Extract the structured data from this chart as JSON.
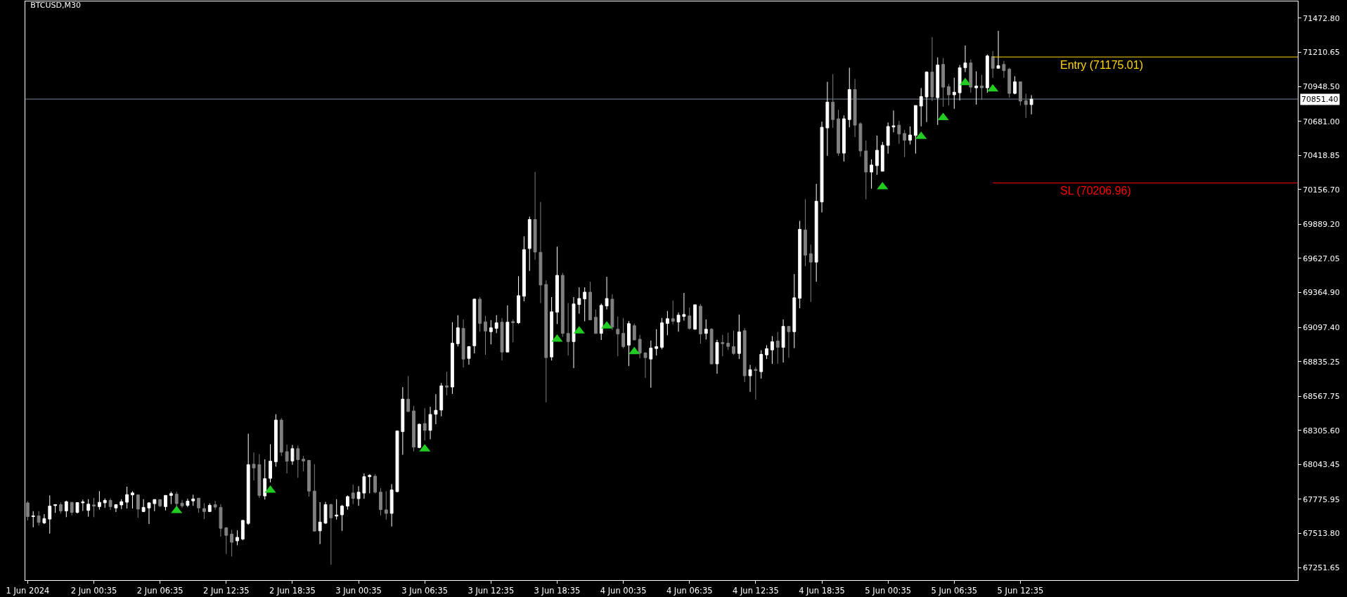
{
  "chart_data": {
    "type": "candlestick",
    "title": "BTCUSD,M30",
    "series": [
      {
        "x": [
          "2024-06-01T18:35",
          "2024-06-01T19:05",
          "2024-06-01T19:35",
          "2024-06-01T20:05",
          "2024-06-01T20:35",
          "2024-06-01T21:05",
          "2024-06-01T21:35",
          "2024-06-01T22:05",
          "2024-06-01T22:35",
          "2024-06-01T23:05",
          "2024-06-01T23:35",
          "2024-06-02T00:05",
          "2024-06-02T00:35",
          "2024-06-02T01:05",
          "2024-06-02T01:35",
          "2024-06-02T02:05",
          "2024-06-02T02:35",
          "2024-06-02T03:05",
          "2024-06-02T03:35",
          "2024-06-02T04:05",
          "2024-06-02T04:35",
          "2024-06-02T05:05",
          "2024-06-02T05:35",
          "2024-06-02T06:05",
          "2024-06-02T06:35",
          "2024-06-02T07:05",
          "2024-06-02T07:35",
          "2024-06-02T08:05",
          "2024-06-02T08:35",
          "2024-06-02T09:05",
          "2024-06-02T09:35",
          "2024-06-02T10:05",
          "2024-06-02T10:35",
          "2024-06-02T11:05",
          "2024-06-02T11:35",
          "2024-06-02T12:05",
          "2024-06-02T12:35",
          "2024-06-02T13:05",
          "2024-06-02T13:35",
          "2024-06-02T14:05",
          "2024-06-02T14:35",
          "2024-06-02T15:05",
          "2024-06-02T15:35",
          "2024-06-02T16:05",
          "2024-06-02T16:35",
          "2024-06-02T17:05",
          "2024-06-02T17:35",
          "2024-06-02T18:05",
          "2024-06-02T18:35",
          "2024-06-02T19:05",
          "2024-06-02T19:35",
          "2024-06-02T20:05",
          "2024-06-02T20:35",
          "2024-06-02T21:05",
          "2024-06-02T21:35",
          "2024-06-02T22:05",
          "2024-06-02T22:35",
          "2024-06-02T23:05",
          "2024-06-02T23:35",
          "2024-06-03T00:05",
          "2024-06-03T00:35",
          "2024-06-03T01:05",
          "2024-06-03T01:35",
          "2024-06-03T02:05",
          "2024-06-03T02:35",
          "2024-06-03T03:05",
          "2024-06-03T03:35",
          "2024-06-03T04:05",
          "2024-06-03T04:35",
          "2024-06-03T05:05",
          "2024-06-03T05:35",
          "2024-06-03T06:05",
          "2024-06-03T06:35",
          "2024-06-03T07:05",
          "2024-06-03T07:35",
          "2024-06-03T08:05",
          "2024-06-03T08:35",
          "2024-06-03T09:05",
          "2024-06-03T09:35",
          "2024-06-03T10:05",
          "2024-06-03T10:35",
          "2024-06-03T11:05",
          "2024-06-03T11:35",
          "2024-06-03T12:05",
          "2024-06-03T12:35",
          "2024-06-03T13:05",
          "2024-06-03T13:35",
          "2024-06-03T14:05",
          "2024-06-03T14:35",
          "2024-06-03T15:05",
          "2024-06-03T15:35",
          "2024-06-03T16:05",
          "2024-06-03T16:35",
          "2024-06-03T17:05",
          "2024-06-03T17:35",
          "2024-06-03T18:05",
          "2024-06-03T18:35",
          "2024-06-03T19:05",
          "2024-06-03T19:35",
          "2024-06-03T20:05",
          "2024-06-03T20:35",
          "2024-06-03T21:05",
          "2024-06-03T21:35",
          "2024-06-03T22:05",
          "2024-06-03T22:35",
          "2024-06-03T23:05",
          "2024-06-03T23:35",
          "2024-06-04T00:05",
          "2024-06-04T00:35",
          "2024-06-04T01:05",
          "2024-06-04T01:35",
          "2024-06-04T02:05",
          "2024-06-04T02:35",
          "2024-06-04T03:05",
          "2024-06-04T03:35",
          "2024-06-04T04:05",
          "2024-06-04T04:35",
          "2024-06-04T05:05",
          "2024-06-04T05:35",
          "2024-06-04T06:05",
          "2024-06-04T06:35",
          "2024-06-04T07:05",
          "2024-06-04T07:35",
          "2024-06-04T08:05",
          "2024-06-04T08:35",
          "2024-06-04T09:05",
          "2024-06-04T09:35",
          "2024-06-04T10:05",
          "2024-06-04T10:35",
          "2024-06-04T11:05",
          "2024-06-04T11:35",
          "2024-06-04T12:05",
          "2024-06-04T12:35",
          "2024-06-04T13:05",
          "2024-06-04T13:35",
          "2024-06-04T14:05",
          "2024-06-04T14:35",
          "2024-06-04T15:05",
          "2024-06-04T15:35",
          "2024-06-04T16:05",
          "2024-06-04T16:35",
          "2024-06-04T17:05",
          "2024-06-04T17:35",
          "2024-06-04T18:05",
          "2024-06-04T18:35",
          "2024-06-04T19:05",
          "2024-06-04T19:35",
          "2024-06-04T20:05",
          "2024-06-04T20:35",
          "2024-06-04T21:05",
          "2024-06-04T21:35",
          "2024-06-04T22:05",
          "2024-06-04T22:35",
          "2024-06-04T23:05",
          "2024-06-04T23:35",
          "2024-06-05T00:05",
          "2024-06-05T00:35",
          "2024-06-05T01:05",
          "2024-06-05T01:35",
          "2024-06-05T02:05",
          "2024-06-05T02:35",
          "2024-06-05T03:05",
          "2024-06-05T03:35",
          "2024-06-05T04:05",
          "2024-06-05T04:35",
          "2024-06-05T05:05",
          "2024-06-05T05:35",
          "2024-06-05T06:05",
          "2024-06-05T06:35",
          "2024-06-05T07:05",
          "2024-06-05T07:35",
          "2024-06-05T08:05",
          "2024-06-05T08:35",
          "2024-06-05T09:05",
          "2024-06-05T09:35",
          "2024-06-05T10:05",
          "2024-06-05T10:35",
          "2024-06-05T11:05",
          "2024-06-05T11:35",
          "2024-06-05T12:05",
          "2024-06-05T12:35",
          "2024-06-05T13:05",
          "2024-06-05T13:35"
        ],
        "ohlc": [
          [
            67749,
            67762,
            67614,
            67643
          ],
          [
            67643,
            67685,
            67561,
            67649
          ],
          [
            67649,
            67685,
            67574,
            67599
          ],
          [
            67595,
            67662,
            67586,
            67628
          ],
          [
            67624,
            67806,
            67513,
            67724
          ],
          [
            67728,
            67739,
            67672,
            67735
          ],
          [
            67735,
            67753,
            67666,
            67687
          ],
          [
            67687,
            67766,
            67639,
            67758
          ],
          [
            67753,
            67754,
            67653,
            67676
          ],
          [
            67676,
            67753,
            67668,
            67751
          ],
          [
            67749,
            67774,
            67687,
            67756
          ],
          [
            67691,
            67777,
            67643,
            67739
          ],
          [
            67733,
            67787,
            67639,
            67724
          ],
          [
            67720,
            67839,
            67697,
            67753
          ],
          [
            67749,
            67783,
            67710,
            67768
          ],
          [
            67768,
            67783,
            67695,
            67720
          ],
          [
            67710,
            67739,
            67678,
            67735
          ],
          [
            67733,
            67777,
            67701,
            67758
          ],
          [
            67754,
            67873,
            67705,
            67812
          ],
          [
            67810,
            67839,
            67705,
            67825
          ],
          [
            67810,
            67812,
            67634,
            67701
          ],
          [
            67682,
            67777,
            67678,
            67714
          ],
          [
            67710,
            67753,
            67586,
            67749
          ],
          [
            67743,
            67777,
            67685,
            67774
          ],
          [
            67774,
            67777,
            67716,
            67726
          ],
          [
            67720,
            67806,
            67691,
            67806
          ],
          [
            67806,
            67835,
            67739,
            67820
          ],
          [
            67816,
            67835,
            67720,
            67743
          ],
          [
            67747,
            67772,
            67710,
            67726
          ],
          [
            67730,
            67781,
            67716,
            67762
          ],
          [
            67764,
            67812,
            67726,
            67779
          ],
          [
            67785,
            67787,
            67672,
            67710
          ],
          [
            67705,
            67745,
            67624,
            67682
          ],
          [
            67682,
            67745,
            67678,
            67730
          ],
          [
            67735,
            67764,
            67697,
            67716
          ],
          [
            67714,
            67739,
            67490,
            67553
          ],
          [
            67557,
            67563,
            67356,
            67499
          ],
          [
            67509,
            67542,
            67336,
            67446
          ],
          [
            67457,
            67538,
            67423,
            67484
          ],
          [
            67471,
            67618,
            67461,
            67614
          ],
          [
            67591,
            68280,
            67580,
            68042
          ],
          [
            68046,
            68136,
            67921,
            68017
          ],
          [
            68042,
            68123,
            67787,
            67806
          ],
          [
            67802,
            68084,
            67774,
            67935
          ],
          [
            67937,
            68199,
            67906,
            68069
          ],
          [
            68065,
            68430,
            68027,
            68385
          ],
          [
            68385,
            68401,
            68109,
            68138
          ],
          [
            68142,
            68196,
            67975,
            68069
          ],
          [
            68071,
            68194,
            68042,
            68165
          ],
          [
            68165,
            68190,
            67941,
            68081
          ],
          [
            68084,
            68109,
            67992,
            68071
          ],
          [
            68075,
            68079,
            67797,
            67839
          ],
          [
            67839,
            68046,
            67528,
            67532
          ],
          [
            67534,
            67754,
            67432,
            67601
          ],
          [
            67593,
            67756,
            67586,
            67735
          ],
          [
            67735,
            67743,
            67273,
            67634
          ],
          [
            67647,
            67777,
            67620,
            67655
          ],
          [
            67657,
            67733,
            67534,
            67724
          ],
          [
            67724,
            67806,
            67697,
            67797
          ],
          [
            67825,
            67889,
            67739,
            67783
          ],
          [
            67781,
            67877,
            67726,
            67831
          ],
          [
            67824,
            67975,
            67781,
            67950
          ],
          [
            67950,
            67969,
            67822,
            67960
          ],
          [
            67954,
            67969,
            67822,
            67831
          ],
          [
            67831,
            67862,
            67653,
            67697
          ],
          [
            67695,
            67839,
            67620,
            67668
          ],
          [
            67668,
            67893,
            67567,
            67848
          ],
          [
            67835,
            68305,
            67831,
            68301
          ],
          [
            68296,
            68638,
            68118,
            68546
          ],
          [
            68546,
            68723,
            68448,
            68451
          ],
          [
            68455,
            68493,
            68145,
            68177
          ],
          [
            68174,
            68358,
            68169,
            68353
          ],
          [
            68358,
            68476,
            68228,
            68306
          ],
          [
            68306,
            68487,
            68237,
            68428
          ],
          [
            68430,
            68584,
            68353,
            68460
          ],
          [
            68462,
            68670,
            68414,
            68648
          ],
          [
            68648,
            68756,
            68575,
            68638
          ],
          [
            68639,
            69137,
            68586,
            68976
          ],
          [
            68972,
            69191,
            68951,
            69094
          ],
          [
            69089,
            69158,
            68790,
            68854
          ],
          [
            68859,
            68954,
            68811,
            68949
          ],
          [
            68956,
            69319,
            68897,
            69314
          ],
          [
            69314,
            69330,
            69064,
            69128
          ],
          [
            69140,
            69185,
            68886,
            69069
          ],
          [
            69064,
            69153,
            68967,
            69094
          ],
          [
            69090,
            69191,
            69053,
            69132
          ],
          [
            69137,
            69169,
            68843,
            68908
          ],
          [
            68908,
            69266,
            68908,
            69137
          ],
          [
            69142,
            69158,
            68983,
            69133
          ],
          [
            69133,
            69491,
            69123,
            69341
          ],
          [
            69337,
            69797,
            69298,
            69695
          ],
          [
            69703,
            69948,
            69531,
            69926
          ],
          [
            69926,
            70291,
            69617,
            69676
          ],
          [
            69674,
            70061,
            69284,
            69423
          ],
          [
            69427,
            69459,
            68521,
            68865
          ],
          [
            68870,
            69330,
            68843,
            69217
          ],
          [
            69214,
            69717,
            69123,
            69497
          ],
          [
            69497,
            69516,
            69024,
            69051
          ],
          [
            69051,
            69284,
            68881,
            68988
          ],
          [
            68988,
            69330,
            68784,
            69277
          ],
          [
            69273,
            69405,
            69203,
            69319
          ],
          [
            69316,
            69405,
            69144,
            69368
          ],
          [
            69368,
            69448,
            69155,
            69155
          ],
          [
            69175,
            69234,
            69047,
            69051
          ],
          [
            69051,
            69280,
            69001,
            69266
          ],
          [
            69262,
            69486,
            69235,
            69319
          ],
          [
            69314,
            69352,
            69078,
            69099
          ],
          [
            69083,
            69180,
            68876,
            69047
          ],
          [
            69051,
            69169,
            68935,
            68949
          ],
          [
            68961,
            69146,
            68800,
            69126
          ],
          [
            69110,
            69126,
            68997,
            69001
          ],
          [
            69006,
            69040,
            68859,
            68899
          ],
          [
            68901,
            68906,
            68709,
            68865
          ],
          [
            68854,
            68996,
            68634,
            68938
          ],
          [
            68935,
            69083,
            68881,
            68949
          ],
          [
            68944,
            69169,
            68929,
            69132
          ],
          [
            69128,
            69223,
            69037,
            69164
          ],
          [
            69164,
            69303,
            69121,
            69144
          ],
          [
            69139,
            69212,
            69064,
            69191
          ],
          [
            69182,
            69362,
            69149,
            69196
          ],
          [
            69185,
            69250,
            69080,
            69089
          ],
          [
            69083,
            69271,
            69080,
            69271
          ],
          [
            69260,
            69277,
            68972,
            69047
          ],
          [
            69051,
            69158,
            69004,
            69083
          ],
          [
            69083,
            69092,
            68811,
            68817
          ],
          [
            68817,
            69003,
            68741,
            68981
          ],
          [
            68981,
            69040,
            68876,
            68972
          ],
          [
            68976,
            69056,
            68924,
            68951
          ],
          [
            68949,
            69072,
            68886,
            68897
          ],
          [
            68897,
            69196,
            68854,
            69062
          ],
          [
            69072,
            69092,
            68677,
            68725
          ],
          [
            68725,
            68809,
            68602,
            68772
          ],
          [
            68774,
            68793,
            68543,
            68766
          ],
          [
            68757,
            68922,
            68704,
            68890
          ],
          [
            68886,
            68960,
            68854,
            68933
          ],
          [
            68924,
            69030,
            68817,
            68987
          ],
          [
            68992,
            69062,
            68817,
            68944
          ],
          [
            68944,
            69158,
            68827,
            69105
          ],
          [
            69105,
            69105,
            68864,
            69064
          ],
          [
            69064,
            69507,
            68938,
            69325
          ],
          [
            69321,
            69916,
            69244,
            69851
          ],
          [
            69846,
            70082,
            69567,
            69652
          ],
          [
            69663,
            69733,
            69293,
            69599
          ],
          [
            69599,
            70200,
            69448,
            70066
          ],
          [
            70061,
            70678,
            69980,
            70635
          ],
          [
            70630,
            70984,
            70415,
            70828
          ],
          [
            70828,
            71043,
            70630,
            70694
          ],
          [
            70700,
            70769,
            70415,
            70436
          ],
          [
            70436,
            70726,
            70372,
            70700
          ],
          [
            70694,
            71092,
            70635,
            70925
          ],
          [
            70925,
            71006,
            70560,
            70651
          ],
          [
            70662,
            70673,
            70410,
            70453
          ],
          [
            70453,
            70533,
            70082,
            70291
          ],
          [
            70291,
            70388,
            70163,
            70345
          ],
          [
            70340,
            70571,
            70270,
            70458
          ],
          [
            70297,
            70522,
            70297,
            70496
          ],
          [
            70496,
            70672,
            70432,
            70641
          ],
          [
            70637,
            70764,
            70596,
            70646
          ],
          [
            70651,
            70683,
            70508,
            70583
          ],
          [
            70587,
            70614,
            70406,
            70535
          ],
          [
            70535,
            70641,
            70503,
            70576
          ],
          [
            70572,
            70802,
            70433,
            70802
          ],
          [
            70798,
            70936,
            70642,
            70871
          ],
          [
            70868,
            71065,
            70675,
            71059
          ],
          [
            71059,
            71328,
            70836,
            70868
          ],
          [
            70862,
            71172,
            70653,
            71113
          ],
          [
            71118,
            71167,
            70793,
            70943
          ],
          [
            70947,
            70968,
            70803,
            70884
          ],
          [
            70884,
            71016,
            70777,
            70904
          ],
          [
            70900,
            71113,
            70841,
            71092
          ],
          [
            71093,
            71263,
            71059,
            71129
          ],
          [
            71129,
            71156,
            70900,
            70943
          ],
          [
            70938,
            71065,
            70809,
            70952
          ],
          [
            70952,
            71038,
            70846,
            70938
          ],
          [
            70938,
            71194,
            70900,
            71183
          ],
          [
            71178,
            71220,
            71016,
            71088
          ],
          [
            71088,
            71376,
            71088,
            71108
          ],
          [
            71118,
            71145,
            71016,
            71070
          ],
          [
            71081,
            71092,
            70862,
            70895
          ],
          [
            70895,
            71027,
            70889,
            70984
          ],
          [
            70984,
            70984,
            70802,
            70836
          ],
          [
            70839,
            70893,
            70707,
            70809
          ],
          [
            70809,
            70882,
            70734,
            70851
          ]
        ],
        "colors": [
          "#808080",
          "#ffffff",
          "#808080",
          "#ffffff",
          "#ffffff",
          "#ffffff",
          "#808080",
          "#ffffff",
          "#808080",
          "#ffffff",
          "#ffffff",
          "#ffffff",
          "#808080",
          "#ffffff",
          "#ffffff",
          "#808080",
          "#ffffff",
          "#ffffff",
          "#ffffff",
          "#ffffff",
          "#808080",
          "#ffffff",
          "#ffffff",
          "#ffffff",
          "#808080",
          "#ffffff",
          "#ffffff",
          "#808080",
          "#808080",
          "#ffffff",
          "#ffffff",
          "#808080",
          "#808080",
          "#ffffff",
          "#808080",
          "#808080",
          "#808080",
          "#808080",
          "#ffffff",
          "#ffffff",
          "#ffffff",
          "#808080",
          "#808080",
          "#ffffff",
          "#ffffff",
          "#ffffff",
          "#808080",
          "#808080",
          "#ffffff",
          "#808080",
          "#808080",
          "#808080",
          "#808080",
          "#ffffff",
          "#ffffff",
          "#808080",
          "#ffffff",
          "#ffffff",
          "#ffffff",
          "#808080",
          "#ffffff",
          "#ffffff",
          "#ffffff",
          "#808080",
          "#808080",
          "#808080",
          "#ffffff",
          "#ffffff",
          "#ffffff",
          "#808080",
          "#808080",
          "#ffffff",
          "#808080",
          "#ffffff",
          "#ffffff",
          "#ffffff",
          "#808080",
          "#ffffff",
          "#ffffff",
          "#808080",
          "#ffffff",
          "#ffffff",
          "#808080",
          "#808080",
          "#ffffff",
          "#ffffff",
          "#808080",
          "#ffffff",
          "#808080",
          "#ffffff",
          "#ffffff",
          "#ffffff",
          "#808080",
          "#808080",
          "#808080",
          "#ffffff",
          "#ffffff",
          "#808080",
          "#808080",
          "#ffffff",
          "#ffffff",
          "#ffffff",
          "#808080",
          "#808080",
          "#ffffff",
          "#ffffff",
          "#808080",
          "#808080",
          "#808080",
          "#ffffff",
          "#808080",
          "#808080",
          "#808080",
          "#ffffff",
          "#ffffff",
          "#ffffff",
          "#ffffff",
          "#808080",
          "#ffffff",
          "#ffffff",
          "#808080",
          "#ffffff",
          "#808080",
          "#ffffff",
          "#808080",
          "#ffffff",
          "#808080",
          "#808080",
          "#808080",
          "#ffffff",
          "#808080",
          "#ffffff",
          "#808080",
          "#ffffff",
          "#ffffff",
          "#ffffff",
          "#808080",
          "#ffffff",
          "#808080",
          "#ffffff",
          "#ffffff",
          "#808080",
          "#808080",
          "#ffffff",
          "#ffffff",
          "#ffffff",
          "#808080",
          "#808080",
          "#ffffff",
          "#ffffff",
          "#808080",
          "#808080",
          "#808080",
          "#ffffff",
          "#ffffff",
          "#ffffff",
          "#ffffff",
          "#ffffff",
          "#808080",
          "#808080",
          "#ffffff",
          "#ffffff",
          "#ffffff",
          "#ffffff",
          "#808080",
          "#ffffff",
          "#808080",
          "#808080",
          "#ffffff",
          "#ffffff",
          "#ffffff",
          "#808080",
          "#ffffff",
          "#808080",
          "#ffffff",
          "#808080",
          "#ffffff",
          "#808080",
          "#808080",
          "#ffffff",
          "#808080",
          "#808080",
          "#ffffff"
        ]
      },
      {
        "type": "scatter",
        "color": "#22cc22",
        "marker": "triangle",
        "x": [
          "2024-06-02T08:05",
          "2024-06-02T16:35",
          "2024-06-03T06:35",
          "2024-06-03T18:35",
          "2024-06-03T20:35",
          "2024-06-03T23:05",
          "2024-06-04T01:35",
          "2024-06-05T00:05",
          "2024-06-05T03:35",
          "2024-06-05T05:35",
          "2024-06-05T07:35",
          "2024-06-05T10:05"
        ],
        "values": [
          67689,
          67846,
          68163,
          69006,
          69069,
          69107,
          68910,
          70177,
          70564,
          70709,
          70977,
          70929
        ]
      },
      {
        "type": "line",
        "name": "Entry (71175.01)",
        "color": "#ffd700",
        "marker": "none",
        "x": [
          "2024-06-05T10:05",
          "2024-06-06T13:44"
        ],
        "values": [
          71175.01,
          71175.01
        ]
      },
      {
        "type": "line",
        "name": "SL (70206.96)",
        "color": "#ff0000",
        "marker": "none",
        "x": [
          "2024-06-05T10:05",
          "2024-06-06T13:44"
        ],
        "values": [
          70206.96,
          70206.96
        ]
      }
    ],
    "xlim": [
      "2024-06-01T18:22",
      "2024-06-06T13:44"
    ],
    "xticks": [
      {
        "value": "2024-06-01T18:35",
        "label": "1 Jun 2024"
      },
      {
        "value": "2024-06-02T00:35",
        "label": "2 Jun 00:35"
      },
      {
        "value": "2024-06-02T06:35",
        "label": "2 Jun 06:35"
      },
      {
        "value": "2024-06-02T12:35",
        "label": "2 Jun 12:35"
      },
      {
        "value": "2024-06-02T18:35",
        "label": "2 Jun 18:35"
      },
      {
        "value": "2024-06-03T00:35",
        "label": "3 Jun 00:35"
      },
      {
        "value": "2024-06-03T06:35",
        "label": "3 Jun 06:35"
      },
      {
        "value": "2024-06-03T12:35",
        "label": "3 Jun 12:35"
      },
      {
        "value": "2024-06-03T18:35",
        "label": "3 Jun 18:35"
      },
      {
        "value": "2024-06-04T00:35",
        "label": "4 Jun 00:35"
      },
      {
        "value": "2024-06-04T06:35",
        "label": "4 Jun 06:35"
      },
      {
        "value": "2024-06-04T12:35",
        "label": "4 Jun 12:35"
      },
      {
        "value": "2024-06-04T18:35",
        "label": "4 Jun 18:35"
      },
      {
        "value": "2024-06-05T00:35",
        "label": "5 Jun 00:35"
      },
      {
        "value": "2024-06-05T06:35",
        "label": "5 Jun 06:35"
      },
      {
        "value": "2024-06-05T12:35",
        "label": "5 Jun 12:35"
      }
    ],
    "ylim": [
      67155,
      71602
    ],
    "yticks": [
      {
        "value": 67251.65,
        "label": "67251.65"
      },
      {
        "value": 67513.8,
        "label": "67513.80"
      },
      {
        "value": 67775.95,
        "label": "67775.95"
      },
      {
        "value": 68043.45,
        "label": "68043.45"
      },
      {
        "value": 68305.6,
        "label": "68305.60"
      },
      {
        "value": 68567.75,
        "label": "68567.75"
      },
      {
        "value": 68835.25,
        "label": "68835.25"
      },
      {
        "value": 69097.4,
        "label": "69097.40"
      },
      {
        "value": 69364.9,
        "label": "69364.90"
      },
      {
        "value": 69627.05,
        "label": "69627.05"
      },
      {
        "value": 69889.2,
        "label": "69889.20"
      },
      {
        "value": 70156.7,
        "label": "70156.70"
      },
      {
        "value": 70418.85,
        "label": "70418.85"
      },
      {
        "value": 70681.0,
        "label": "70681.00"
      },
      {
        "value": 70851.4,
        "label": "70851.40"
      },
      {
        "value": 70948.5,
        "label": "70948.50"
      },
      {
        "value": 71210.65,
        "label": "71210.65"
      },
      {
        "value": 71472.8,
        "label": "71472.80"
      }
    ],
    "ref_lines": [
      {
        "axis": "y",
        "value": 70851.4,
        "color": "#778899"
      }
    ]
  }
}
